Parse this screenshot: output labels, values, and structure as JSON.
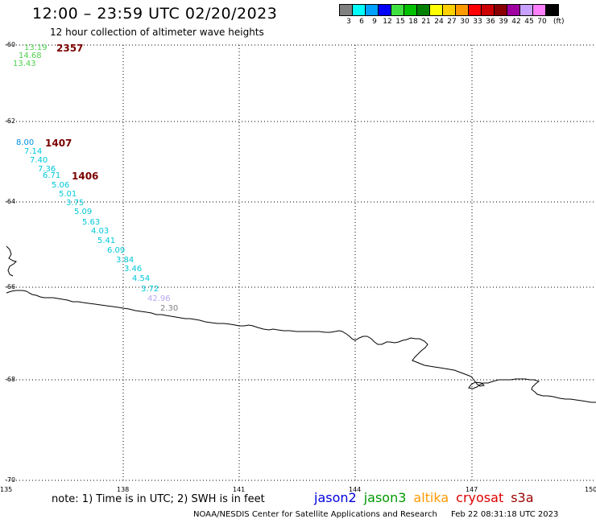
{
  "header": {
    "title": "12:00 – 23:59 UTC 02/20/2023",
    "subtitle": "12 hour collection of altimeter wave heights"
  },
  "scale": {
    "unit": "(ft)",
    "swatches": [
      {
        "label": "3",
        "color": "#808080"
      },
      {
        "label": "6",
        "color": "#00ffff"
      },
      {
        "label": "9",
        "color": "#00a0ff"
      },
      {
        "label": "12",
        "color": "#0000ff"
      },
      {
        "label": "15",
        "color": "#40e040"
      },
      {
        "label": "18",
        "color": "#00c000"
      },
      {
        "label": "21",
        "color": "#008000"
      },
      {
        "label": "24",
        "color": "#ffff00"
      },
      {
        "label": "27",
        "color": "#ffd000"
      },
      {
        "label": "30",
        "color": "#ff9900"
      },
      {
        "label": "33",
        "color": "#ff0000"
      },
      {
        "label": "36",
        "color": "#cc0000"
      },
      {
        "label": "39",
        "color": "#880000"
      },
      {
        "label": "42",
        "color": "#a000a0"
      },
      {
        "label": "45",
        "color": "#c8a0ff"
      },
      {
        "label": "70",
        "color": "#ff80ff"
      },
      {
        "label": "",
        "color": "#000000"
      }
    ]
  },
  "map": {
    "lat_labels": [
      "-60",
      "-62",
      "-64",
      "-66",
      "-68",
      "-70"
    ],
    "lon_labels": [
      "135",
      "138",
      "141",
      "144",
      "147",
      "150"
    ],
    "wave_heights": [
      {
        "text": "13.19",
        "color": "#50d050"
      },
      {
        "text": "14.68",
        "color": "#50d050"
      },
      {
        "text": "13.43",
        "color": "#50d050"
      },
      {
        "text": "8.00",
        "color": "#0090e0"
      },
      {
        "text": "7.14",
        "color": "#00c8d8"
      },
      {
        "text": "7.40",
        "color": "#00c8d8"
      },
      {
        "text": "7.36",
        "color": "#00c8d8"
      },
      {
        "text": "6.71",
        "color": "#00c8d8"
      },
      {
        "text": "5.06",
        "color": "#00c8d8"
      },
      {
        "text": "5.01",
        "color": "#00c8d8"
      },
      {
        "text": "3.75",
        "color": "#00c8d8"
      },
      {
        "text": "5.09",
        "color": "#00c8d8"
      },
      {
        "text": "5.63",
        "color": "#00c8d8"
      },
      {
        "text": "4.03",
        "color": "#00c8d8"
      },
      {
        "text": "5.41",
        "color": "#00c8d8"
      },
      {
        "text": "6.09",
        "color": "#00c8d8"
      },
      {
        "text": "3.84",
        "color": "#00c8d8"
      },
      {
        "text": "3.46",
        "color": "#00c8d8"
      },
      {
        "text": "4.54",
        "color": "#00c8d8"
      },
      {
        "text": "3.72",
        "color": "#00c8d8"
      },
      {
        "text": "42.96",
        "color": "#b8a8f0"
      },
      {
        "text": "2.30",
        "color": "#808080"
      }
    ],
    "times": [
      {
        "text": "2357",
        "color": "#7a0000"
      },
      {
        "text": "1407",
        "color": "#7a0000"
      },
      {
        "text": "1406",
        "color": "#7a0000"
      }
    ]
  },
  "footer": {
    "note": "note:  1) Time is in UTC;  2) SWH is in feet",
    "satellites": [
      {
        "name": "jason2",
        "color": "#0000dd"
      },
      {
        "name": "jason3",
        "color": "#009900"
      },
      {
        "name": "altika",
        "color": "#ff9900"
      },
      {
        "name": "cryosat",
        "color": "#dd0000"
      },
      {
        "name": "s3a",
        "color": "#990000"
      }
    ],
    "credit": "NOAA/NESDIS Center for Satellite Applications and Research",
    "timestamp": "Feb 22 08:31:18 UTC 2023"
  }
}
